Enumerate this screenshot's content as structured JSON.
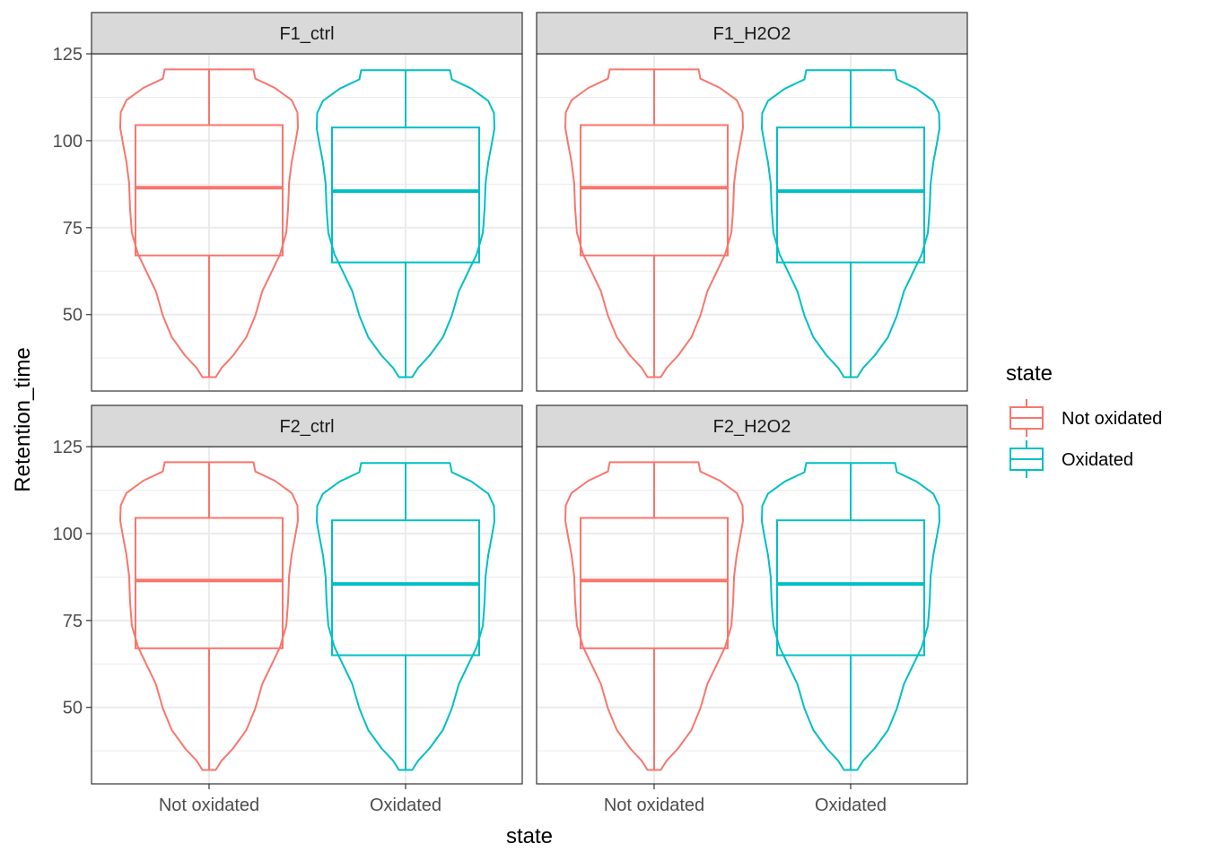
{
  "chart_data": {
    "type": "violin",
    "xlabel": "state",
    "ylabel": "Retention_time",
    "categories": [
      "Not oxidated",
      "Oxidated"
    ],
    "ylim": [
      28,
      125
    ],
    "yticks": [
      50,
      75,
      100,
      125
    ],
    "grid": true,
    "legend": {
      "title": "state",
      "position": "right",
      "entries": [
        {
          "label": "Not oxidated",
          "color": "#F8766D"
        },
        {
          "label": "Oxidated",
          "color": "#00BFC4"
        }
      ]
    },
    "panels": [
      {
        "label": "F1_ctrl",
        "series": [
          {
            "name": "Not oxidated",
            "color": "#F8766D",
            "min": 32,
            "q1": 67,
            "median": 86.5,
            "q3": 104.5,
            "max": 120.5
          },
          {
            "name": "Oxidated",
            "color": "#00BFC4",
            "min": 32,
            "q1": 65,
            "median": 85.5,
            "q3": 103.8,
            "max": 120.3
          }
        ]
      },
      {
        "label": "F1_H2O2",
        "series": [
          {
            "name": "Not oxidated",
            "color": "#F8766D",
            "min": 32,
            "q1": 67,
            "median": 86.5,
            "q3": 104.5,
            "max": 120.5
          },
          {
            "name": "Oxidated",
            "color": "#00BFC4",
            "min": 32,
            "q1": 65,
            "median": 85.5,
            "q3": 103.8,
            "max": 120.3
          }
        ]
      },
      {
        "label": "F2_ctrl",
        "series": [
          {
            "name": "Not oxidated",
            "color": "#F8766D",
            "min": 32,
            "q1": 67,
            "median": 86.5,
            "q3": 104.5,
            "max": 120.5
          },
          {
            "name": "Oxidated",
            "color": "#00BFC4",
            "min": 32,
            "q1": 65,
            "median": 85.5,
            "q3": 103.8,
            "max": 120.3
          }
        ]
      },
      {
        "label": "F2_H2O2",
        "series": [
          {
            "name": "Not oxidated",
            "color": "#F8766D",
            "min": 32,
            "q1": 67,
            "median": 86.5,
            "q3": 104.5,
            "max": 120.5
          },
          {
            "name": "Oxidated",
            "color": "#00BFC4",
            "min": 32,
            "q1": 65,
            "median": 85.5,
            "q3": 103.8,
            "max": 120.3
          }
        ]
      }
    ]
  }
}
